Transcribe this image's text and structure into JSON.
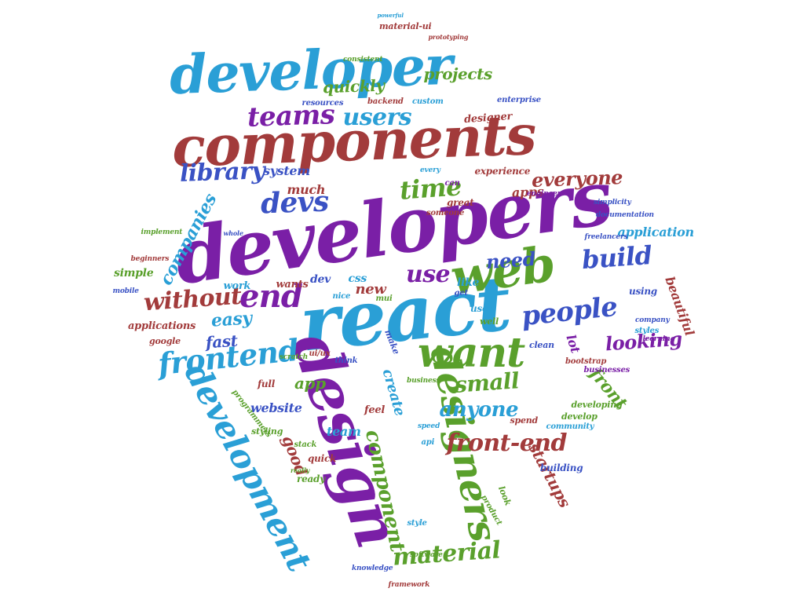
{
  "colors": {
    "background": "#ffffff",
    "palette": [
      "#7a1fa6",
      "#2a9fd6",
      "#3a52c4",
      "#5aa02c",
      "#a23b3b"
    ]
  },
  "words": [
    {
      "text": "developers",
      "color": "#7a1fa6"
    },
    {
      "text": "react",
      "color": "#2a9fd6"
    },
    {
      "text": "components",
      "color": "#a23b3b"
    },
    {
      "text": "developer",
      "color": "#2a9fd6"
    },
    {
      "text": "design",
      "color": "#7a1fa6"
    },
    {
      "text": "web",
      "color": "#5aa02c"
    },
    {
      "text": "want",
      "color": "#5aa02c"
    },
    {
      "text": "designers",
      "color": "#5aa02c"
    },
    {
      "text": "development",
      "color": "#2a9fd6"
    },
    {
      "text": "frontend",
      "color": "#2a9fd6"
    },
    {
      "text": "front-end",
      "color": "#a23b3b"
    },
    {
      "text": "end",
      "color": "#7a1fa6"
    },
    {
      "text": "people",
      "color": "#3a52c4"
    },
    {
      "text": "devs",
      "color": "#3a52c4"
    },
    {
      "text": "teams",
      "color": "#7a1fa6"
    },
    {
      "text": "users",
      "color": "#2a9fd6"
    },
    {
      "text": "library",
      "color": "#3a52c4"
    },
    {
      "text": "time",
      "color": "#5aa02c"
    },
    {
      "text": "build",
      "color": "#3a52c4"
    },
    {
      "text": "use",
      "color": "#7a1fa6"
    },
    {
      "text": "need",
      "color": "#3a52c4"
    },
    {
      "text": "without",
      "color": "#a23b3b"
    },
    {
      "text": "material",
      "color": "#5aa02c"
    },
    {
      "text": "small",
      "color": "#5aa02c"
    },
    {
      "text": "anyone",
      "color": "#2a9fd6"
    },
    {
      "text": "looking",
      "color": "#7a1fa6"
    },
    {
      "text": "front",
      "color": "#5aa02c"
    },
    {
      "text": "startups",
      "color": "#a23b3b"
    },
    {
      "text": "component",
      "color": "#5aa02c"
    },
    {
      "text": "companies",
      "color": "#2a9fd6"
    },
    {
      "text": "everyone",
      "color": "#a23b3b"
    },
    {
      "text": "quickly",
      "color": "#5aa02c"
    },
    {
      "text": "projects",
      "color": "#5aa02c"
    },
    {
      "text": "easy",
      "color": "#2a9fd6"
    },
    {
      "text": "fast",
      "color": "#3a52c4"
    },
    {
      "text": "app",
      "color": "#5aa02c"
    },
    {
      "text": "new",
      "color": "#a23b3b"
    },
    {
      "text": "application",
      "color": "#2a9fd6"
    },
    {
      "text": "beautiful",
      "color": "#a23b3b"
    },
    {
      "text": "applications",
      "color": "#a23b3b"
    },
    {
      "text": "create",
      "color": "#2a9fd6"
    },
    {
      "text": "good",
      "color": "#a23b3b"
    },
    {
      "text": "team",
      "color": "#2a9fd6"
    },
    {
      "text": "lot",
      "color": "#7a1fa6"
    },
    {
      "text": "website",
      "color": "#3a52c4"
    },
    {
      "text": "apps",
      "color": "#a23b3b"
    },
    {
      "text": "much",
      "color": "#a23b3b"
    },
    {
      "text": "system",
      "color": "#3a52c4"
    },
    {
      "text": "dev",
      "color": "#3a52c4"
    },
    {
      "text": "css",
      "color": "#2a9fd6"
    },
    {
      "text": "like",
      "color": "#2a9fd6"
    },
    {
      "text": "wants",
      "color": "#a23b3b"
    },
    {
      "text": "designer",
      "color": "#a23b3b"
    },
    {
      "text": "experience",
      "color": "#a23b3b"
    },
    {
      "text": "material-ui",
      "color": "#a23b3b"
    },
    {
      "text": "consistent",
      "color": "#5aa02c"
    },
    {
      "text": "prototyping",
      "color": "#a23b3b"
    },
    {
      "text": "powerful",
      "color": "#2a9fd6"
    },
    {
      "text": "resources",
      "color": "#3a52c4"
    },
    {
      "text": "backend",
      "color": "#a23b3b"
    },
    {
      "text": "custom",
      "color": "#2a9fd6"
    },
    {
      "text": "enterprise",
      "color": "#3a52c4"
    },
    {
      "text": "can",
      "color": "#7a1fa6"
    },
    {
      "text": "every",
      "color": "#2a9fd6"
    },
    {
      "text": "engineers",
      "color": "#7a1fa6"
    },
    {
      "text": "simplicity",
      "color": "#3a52c4"
    },
    {
      "text": "documentation",
      "color": "#3a52c4"
    },
    {
      "text": "freelancers",
      "color": "#3a52c4"
    },
    {
      "text": "great",
      "color": "#a23b3b"
    },
    {
      "text": "someone",
      "color": "#a23b3b"
    },
    {
      "text": "implement",
      "color": "#5aa02c"
    },
    {
      "text": "whole",
      "color": "#3a52c4"
    },
    {
      "text": "simple",
      "color": "#5aa02c"
    },
    {
      "text": "beginners",
      "color": "#a23b3b"
    },
    {
      "text": "mobile",
      "color": "#3a52c4"
    },
    {
      "text": "work",
      "color": "#2a9fd6"
    },
    {
      "text": "nice",
      "color": "#2a9fd6"
    },
    {
      "text": "mui",
      "color": "#5aa02c"
    },
    {
      "text": "get",
      "color": "#3a52c4"
    },
    {
      "text": "user",
      "color": "#2a9fd6"
    },
    {
      "text": "well",
      "color": "#5aa02c"
    },
    {
      "text": "using",
      "color": "#3a52c4"
    },
    {
      "text": "company",
      "color": "#3a52c4"
    },
    {
      "text": "styles",
      "color": "#2a9fd6"
    },
    {
      "text": "learning",
      "color": "#7a1fa6"
    },
    {
      "text": "google",
      "color": "#a23b3b"
    },
    {
      "text": "ui/ux",
      "color": "#a23b3b"
    },
    {
      "text": "scratch",
      "color": "#5aa02c"
    },
    {
      "text": "think",
      "color": "#3a52c4"
    },
    {
      "text": "clean",
      "color": "#3a52c4"
    },
    {
      "text": "make",
      "color": "#3a52c4"
    },
    {
      "text": "bootstrap",
      "color": "#a23b3b"
    },
    {
      "text": "businesses",
      "color": "#7a1fa6"
    },
    {
      "text": "developing",
      "color": "#5aa02c"
    },
    {
      "text": "develop",
      "color": "#5aa02c"
    },
    {
      "text": "community",
      "color": "#2a9fd6"
    },
    {
      "text": "spend",
      "color": "#a23b3b"
    },
    {
      "text": "speed",
      "color": "#2a9fd6"
    },
    {
      "text": "api",
      "color": "#2a9fd6"
    },
    {
      "text": "feel",
      "color": "#a23b3b"
    },
    {
      "text": "full",
      "color": "#a23b3b"
    },
    {
      "text": "styling",
      "color": "#5aa02c"
    },
    {
      "text": "stack",
      "color": "#5aa02c"
    },
    {
      "text": "quick",
      "color": "#a23b3b"
    },
    {
      "text": "ready",
      "color": "#5aa02c"
    },
    {
      "text": "really",
      "color": "#5aa02c"
    },
    {
      "text": "building",
      "color": "#3a52c4"
    },
    {
      "text": "look",
      "color": "#5aa02c"
    },
    {
      "text": "product",
      "color": "#5aa02c"
    },
    {
      "text": "style",
      "color": "#2a9fd6"
    },
    {
      "text": "software",
      "color": "#5aa02c"
    },
    {
      "text": "knowledge",
      "color": "#3a52c4"
    },
    {
      "text": "framework",
      "color": "#a23b3b"
    },
    {
      "text": "programmers",
      "color": "#5aa02c"
    },
    {
      "text": "business",
      "color": "#5aa02c"
    }
  ]
}
